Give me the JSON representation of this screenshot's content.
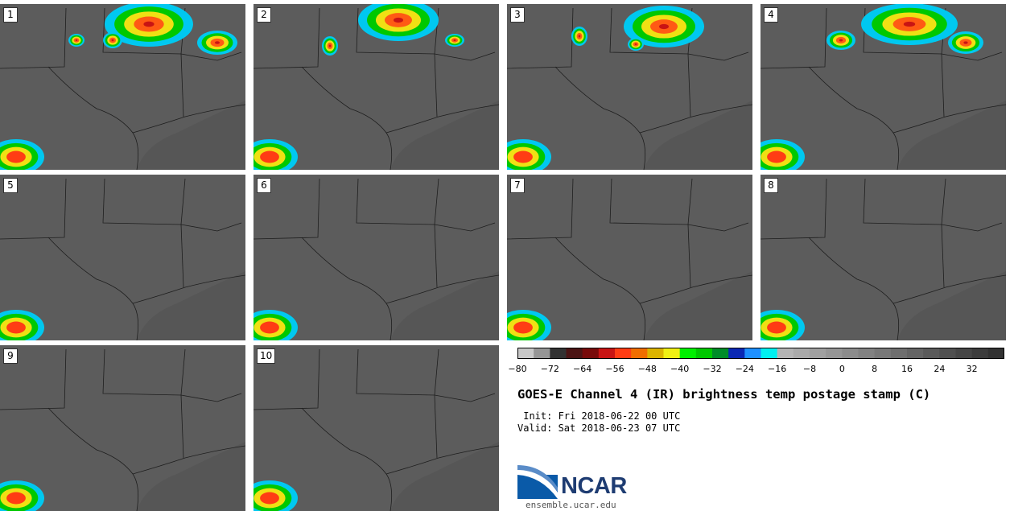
{
  "panels": [
    {
      "label": "1"
    },
    {
      "label": "2"
    },
    {
      "label": "3"
    },
    {
      "label": "4"
    },
    {
      "label": "5"
    },
    {
      "label": "6"
    },
    {
      "label": "7"
    },
    {
      "label": "8"
    },
    {
      "label": "9"
    },
    {
      "label": "10"
    }
  ],
  "colorbar": {
    "ticks": [
      "−80",
      "−72",
      "−64",
      "−56",
      "−48",
      "−40",
      "−32",
      "−24",
      "−16",
      "−8",
      "0",
      "8",
      "16",
      "24",
      "32"
    ],
    "colors": [
      "#c8c8c8",
      "#969696",
      "#323232",
      "#4b1414",
      "#780a0a",
      "#c81414",
      "#ff3c14",
      "#f06e00",
      "#dcb400",
      "#f0f014",
      "#00f000",
      "#00c800",
      "#008c28",
      "#0a28b4",
      "#1e90ff",
      "#00f0f0",
      "#b4b4b4",
      "#aaaaaa",
      "#a0a0a0",
      "#969696",
      "#8c8c8c",
      "#828282",
      "#787878",
      "#6e6e6e",
      "#646464",
      "#5a5a5a",
      "#505050",
      "#464646",
      "#3c3c3c",
      "#323232"
    ]
  },
  "title": "GOES-E Channel 4 (IR) brightness temp postage stamp (C)",
  "init": " Init: Fri 2018-06-22 00 UTC",
  "valid": "Valid: Sat 2018-06-23 07 UTC",
  "logo": "NCAR",
  "site": "ensemble.ucar.edu"
}
